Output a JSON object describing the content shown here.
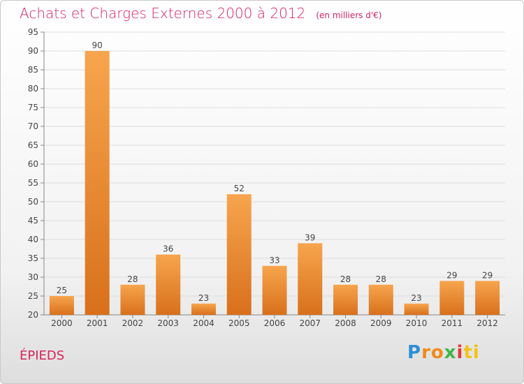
{
  "title": "Achats et Charges Externes 2000 à 2012",
  "unit": "(en milliers d'€)",
  "commune": "ÉPIEDS",
  "logo": {
    "text": "Proxiti",
    "colors": [
      "#2a8fd6",
      "#f08a1c",
      "#41b649",
      "#e23a3a",
      "#f2c318"
    ]
  },
  "colors": {
    "title": "#d6245c",
    "bar_light": "#f7a54e",
    "bar_dark": "#d8701b",
    "axis_text": "#444444",
    "grid": "#dddddd"
  },
  "chart_data": {
    "type": "bar",
    "categories": [
      "2000",
      "2001",
      "2002",
      "2003",
      "2004",
      "2005",
      "2006",
      "2007",
      "2008",
      "2009",
      "2010",
      "2011",
      "2012"
    ],
    "values": [
      25,
      90,
      28,
      36,
      23,
      52,
      33,
      39,
      28,
      28,
      23,
      29,
      29
    ],
    "ylim": [
      20,
      95
    ],
    "yticks": [
      20,
      25,
      30,
      35,
      40,
      45,
      50,
      55,
      60,
      65,
      70,
      75,
      80,
      85,
      90,
      95
    ],
    "grid": true
  }
}
